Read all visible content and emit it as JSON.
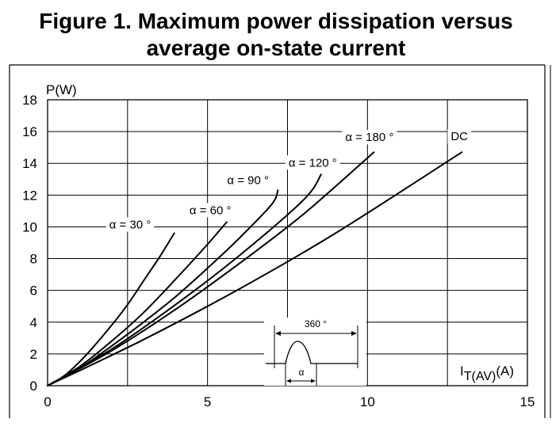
{
  "figure": {
    "title_line1": "Figure 1. Maximum power dissipation versus",
    "title_line2": "average on-state current"
  },
  "chart_data": {
    "type": "line",
    "title": "Figure 1. Maximum power dissipation versus average on-state current",
    "ylabel": "P(W)",
    "xlabel_main": "I",
    "xlabel_sub": "T(AV)",
    "xlabel_unit": "(A)",
    "xlim": [
      0,
      15
    ],
    "ylim": [
      0,
      18
    ],
    "x_ticks": [
      0,
      5,
      10,
      15
    ],
    "y_ticks": [
      0,
      2,
      4,
      6,
      8,
      10,
      12,
      14,
      16,
      18
    ],
    "grid": true,
    "series": [
      {
        "name": "α = 30 °",
        "x": [
          0,
          0.5,
          1,
          1.5,
          2,
          2.5,
          3,
          3.5,
          3.96
        ],
        "y": [
          0,
          0.6,
          1.5,
          2.6,
          3.8,
          5.1,
          6.6,
          8.1,
          9.6
        ]
      },
      {
        "name": "α = 60 °",
        "x": [
          0,
          1,
          2,
          3,
          4,
          5,
          5.6
        ],
        "y": [
          0,
          1.2,
          2.8,
          4.6,
          6.7,
          8.9,
          10.3
        ]
      },
      {
        "name": "α = 90 °",
        "x": [
          0,
          1,
          2,
          3,
          4,
          5,
          6,
          7,
          7.2
        ],
        "y": [
          0,
          1.1,
          2.5,
          4,
          5.6,
          7.4,
          9.3,
          11.4,
          12.3
        ]
      },
      {
        "name": "α = 120 °",
        "x": [
          0,
          2,
          4,
          6,
          8,
          8.55
        ],
        "y": [
          0,
          2.3,
          5.1,
          8.2,
          11.7,
          13.3
        ]
      },
      {
        "name": "α = 180 °",
        "x": [
          0,
          2,
          4,
          6,
          8,
          10.2
        ],
        "y": [
          0,
          2.2,
          4.8,
          7.7,
          10.8,
          14.7
        ]
      },
      {
        "name": "DC",
        "x": [
          0,
          3,
          6,
          9,
          12.95
        ],
        "y": [
          0,
          2.9,
          6.1,
          9.6,
          14.7
        ]
      }
    ],
    "inset": {
      "period_label": "360 °",
      "conduction_label": "α"
    }
  }
}
